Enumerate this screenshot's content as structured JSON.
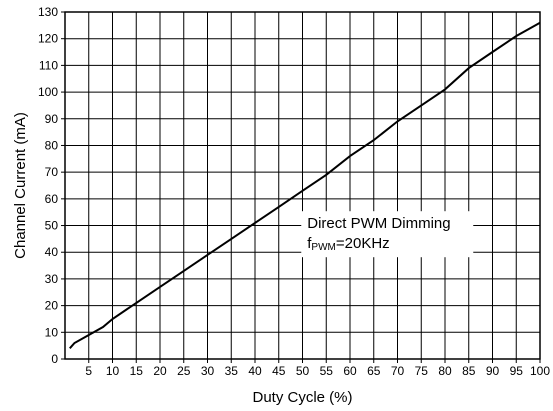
{
  "chart_data": {
    "type": "line",
    "title": "",
    "xlabel": "Duty Cycle (%)",
    "ylabel": "Channel Current (mA)",
    "xlim": [
      0,
      100
    ],
    "ylim": [
      0,
      130
    ],
    "xticks": [
      5,
      10,
      15,
      20,
      25,
      30,
      35,
      40,
      45,
      50,
      55,
      60,
      65,
      70,
      75,
      80,
      85,
      90,
      95,
      100
    ],
    "yticks": [
      0,
      10,
      20,
      30,
      40,
      50,
      60,
      70,
      80,
      90,
      100,
      110,
      120,
      130
    ],
    "grid": true,
    "annotation": {
      "line1": "Direct PWM Dimming",
      "line2_main_prefix": "f",
      "line2_sub": "PWM",
      "line2_main_suffix": "=20KHz"
    },
    "series": [
      {
        "x": [
          1,
          2,
          5,
          8,
          10,
          15,
          20,
          25,
          30,
          35,
          40,
          45,
          50,
          55,
          60,
          65,
          70,
          75,
          80,
          85,
          90,
          95,
          100
        ],
        "y": [
          4,
          6,
          9,
          12,
          15,
          21,
          27,
          33,
          39,
          45,
          51,
          57,
          63,
          69,
          76,
          82,
          89,
          95,
          101,
          109,
          115,
          121,
          126
        ]
      }
    ]
  }
}
